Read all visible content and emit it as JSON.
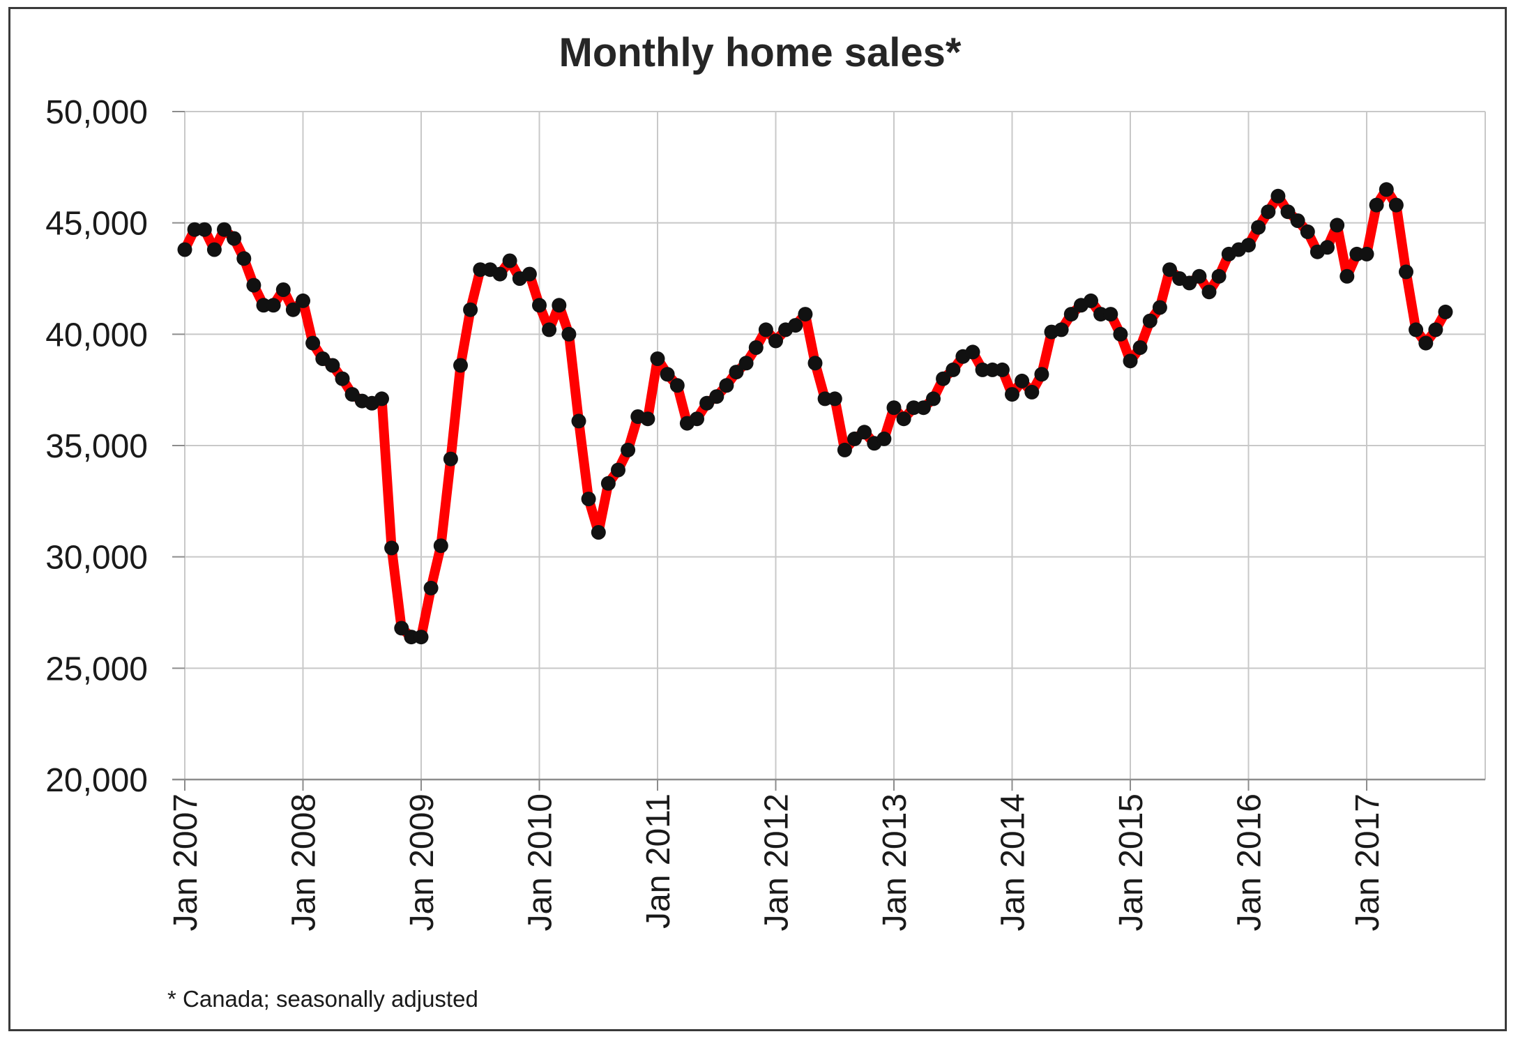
{
  "chart_data": {
    "type": "line",
    "title": "Monthly home sales*",
    "footnote": "* Canada; seasonally adjusted",
    "xlabel": "",
    "ylabel": "",
    "ylim": [
      20000,
      50000
    ],
    "yticks": [
      20000,
      25000,
      30000,
      35000,
      40000,
      45000,
      50000
    ],
    "ytick_labels": [
      "20,000",
      "25,000",
      "30,000",
      "35,000",
      "40,000",
      "45,000",
      "50,000"
    ],
    "xtick_labels": [
      "Jan 2007",
      "Jan 2008",
      "Jan 2009",
      "Jan 2010",
      "Jan 2011",
      "Jan 2012",
      "Jan 2013",
      "Jan 2014",
      "Jan 2015",
      "Jan 2016",
      "Jan 2017"
    ],
    "x_start": "Jan 2007",
    "x_end": "Sep 2017",
    "grid": true,
    "line_color": "#ff0000",
    "marker_color": "#111111",
    "series": [
      {
        "values": [
          43800,
          44700,
          44700,
          43800,
          44700,
          44300,
          43400,
          42200,
          41300,
          41300,
          42000,
          41100,
          41500,
          39600,
          38900,
          38600,
          38000,
          37300,
          37000,
          36900,
          37100,
          30400,
          26800,
          26400,
          26400,
          28600,
          30500,
          34400,
          38600,
          41100,
          42900,
          42900,
          42700,
          43300,
          42500,
          42700,
          41300,
          40200,
          41300,
          40000,
          36100,
          32600,
          31100,
          33300,
          33900,
          34800,
          36300,
          36200,
          38900,
          38200,
          37700,
          36000,
          36200,
          36900,
          37200,
          37700,
          38300,
          38700,
          39400,
          40200,
          39700,
          40200,
          40400,
          40900,
          38700,
          37100,
          37100,
          34800,
          35300,
          35600,
          35100,
          35300,
          36700,
          36200,
          36700,
          36700,
          37100,
          38000,
          38400,
          39000,
          39200,
          38400,
          38400,
          38400,
          37300,
          37900,
          37400,
          38200,
          40100,
          40200,
          40900,
          41300,
          41500,
          40900,
          40900,
          40000,
          38800,
          39400,
          40600,
          41200,
          42900,
          42500,
          42300,
          42600,
          41900,
          42600,
          43600,
          43800,
          44000,
          44800,
          45500,
          46200,
          45500,
          45100,
          44600,
          43700,
          43900,
          44900,
          42600,
          43600,
          43600,
          45800,
          46500,
          45800,
          42800,
          40200,
          39600,
          40200,
          41000
        ]
      }
    ]
  }
}
